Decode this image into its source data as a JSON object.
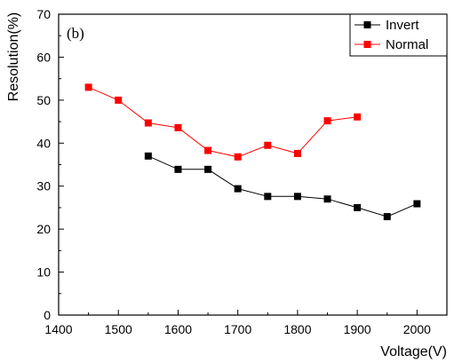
{
  "chart_data": {
    "type": "line",
    "panel_label": "(b)",
    "xlabel": "Voltage(V)",
    "ylabel": "Resolution(%)",
    "xlim": [
      1400,
      2050
    ],
    "ylim": [
      0,
      70
    ],
    "xticks": [
      1400,
      1500,
      1600,
      1700,
      1800,
      1900,
      2000
    ],
    "yticks": [
      0,
      10,
      20,
      30,
      40,
      50,
      60,
      70
    ],
    "grid": false,
    "legend_position": "top-right",
    "series": [
      {
        "name": "Invert",
        "color": "#000000",
        "marker": "square",
        "x": [
          1550,
          1600,
          1650,
          1700,
          1750,
          1800,
          1850,
          1900,
          1950,
          2000
        ],
        "y": [
          37.0,
          33.9,
          33.9,
          29.4,
          27.6,
          27.6,
          27.0,
          25.0,
          22.9,
          25.9
        ]
      },
      {
        "name": "Normal",
        "color": "#ff0000",
        "marker": "square",
        "x": [
          1450,
          1500,
          1550,
          1600,
          1650,
          1700,
          1750,
          1800,
          1850,
          1900
        ],
        "y": [
          53.0,
          50.0,
          44.7,
          43.6,
          38.3,
          36.8,
          39.5,
          37.6,
          45.2,
          46.1
        ]
      }
    ]
  }
}
